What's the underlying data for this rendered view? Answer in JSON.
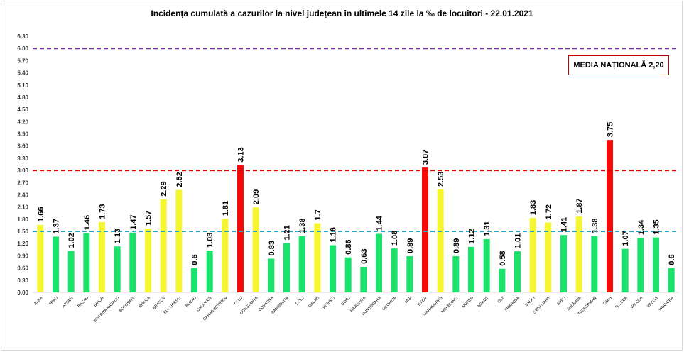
{
  "chart_data": {
    "type": "bar",
    "title": "Incidența cumulată a cazurilor la nivel județean în ultimele 14 zile la ‰ de locuitori - 22.01.2021",
    "annotation": "MEDIA NAȚIONALĂ 2,20",
    "ylim": [
      0,
      6.3
    ],
    "yticks": [
      "0.00",
      "0.30",
      "0.60",
      "0.90",
      "1.20",
      "1.50",
      "1.80",
      "2.10",
      "2.40",
      "2.70",
      "3.00",
      "3.30",
      "3.60",
      "3.90",
      "4.20",
      "4.50",
      "4.80",
      "5.10",
      "5.40",
      "5.70",
      "6.00",
      "6.30"
    ],
    "grid": false,
    "reference_lines": [
      {
        "value": 6.0,
        "color": "#7030a0",
        "style": "dashed"
      },
      {
        "value": 3.0,
        "color": "#e00000",
        "style": "dashed"
      },
      {
        "value": 1.5,
        "color": "#2aa6c9",
        "style": "dashed"
      }
    ],
    "colors": {
      "green": "#19e36a",
      "yellow": "#f5f531",
      "red": "#f50a0a"
    },
    "categories": [
      "ALBA",
      "ARAD",
      "ARGES",
      "BACAU",
      "BIHOR",
      "BISTRITA NASAUD",
      "BOTOSANI",
      "BRAILA",
      "BRASOV",
      "BUCURESTI",
      "BUZAU",
      "CALARASI",
      "CARAS-SEVERIN",
      "CLUJ",
      "CONSTANTA",
      "COVASNA",
      "DAMBOVITA",
      "DOLJ",
      "GALATI",
      "GIURGIU",
      "GORJ",
      "HARGHITA",
      "HUNEDOARA",
      "IALOMITA",
      "IASI",
      "ILFOV",
      "MARAMURES",
      "MEHEDINTI",
      "MURES",
      "NEAMT",
      "OLT",
      "PRAHOVA",
      "SALAJ",
      "SATU MARE",
      "SIBIU",
      "SUCEAVA",
      "TELEORMAN",
      "TIMIS",
      "TULCEA",
      "VALCEA",
      "VASLUI",
      "VRANCEA"
    ],
    "values": [
      1.66,
      1.37,
      1.02,
      1.46,
      1.73,
      1.13,
      1.47,
      1.57,
      2.29,
      2.52,
      0.6,
      1.03,
      1.81,
      3.13,
      2.09,
      0.83,
      1.21,
      1.38,
      1.7,
      1.16,
      0.86,
      0.63,
      1.44,
      1.08,
      0.89,
      3.07,
      2.53,
      0.89,
      1.12,
      1.31,
      0.58,
      1.01,
      1.83,
      1.72,
      1.41,
      1.87,
      1.38,
      3.75,
      1.07,
      1.34,
      1.35,
      0.6
    ],
    "value_labels": [
      "1.66",
      "1.37",
      "1.02",
      "1.46",
      "1.73",
      "1.13",
      "1.47",
      "1.57",
      "2.29",
      "2.52",
      "0.6",
      "1.03",
      "1.81",
      "3.13",
      "2.09",
      "0.83",
      "1.21",
      "1.38",
      "1.7",
      "1.16",
      "0.86",
      "0.63",
      "1.44",
      "1.08",
      "0.89",
      "3.07",
      "2.53",
      "0.89",
      "1.12",
      "1.31",
      "0.58",
      "1.01",
      "1.83",
      "1.72",
      "1.41",
      "1.87",
      "1.38",
      "3.75",
      "1.07",
      "1.34",
      "1.35",
      "0.6"
    ],
    "bar_colors": [
      "yellow",
      "green",
      "green",
      "green",
      "yellow",
      "green",
      "green",
      "yellow",
      "yellow",
      "yellow",
      "green",
      "green",
      "yellow",
      "red",
      "yellow",
      "green",
      "green",
      "green",
      "yellow",
      "green",
      "green",
      "green",
      "green",
      "green",
      "green",
      "red",
      "yellow",
      "green",
      "green",
      "green",
      "green",
      "green",
      "yellow",
      "yellow",
      "green",
      "yellow",
      "green",
      "red",
      "green",
      "green",
      "green",
      "green"
    ]
  }
}
